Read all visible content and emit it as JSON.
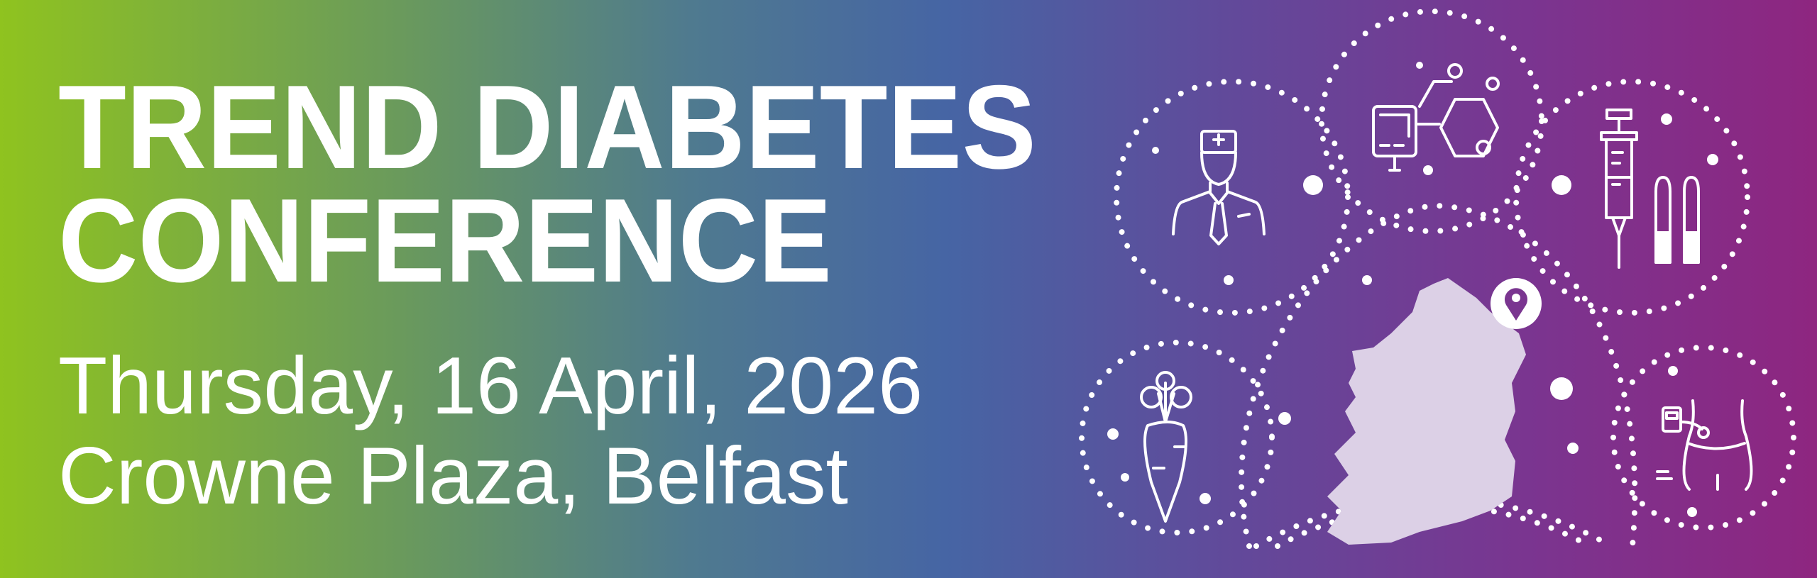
{
  "banner": {
    "title_line1": "TREND DIABETES",
    "title_line2": "CONFERENCE",
    "date": "Thursday, 16 April, 2026",
    "venue": "Crowne Plaza, Belfast"
  },
  "colors": {
    "gradient_left": "#8fc31f",
    "gradient_middle": "#4665a4",
    "gradient_right": "#8e2680",
    "map_fill": "#dcd0e6",
    "text": "#ffffff"
  },
  "illustration": {
    "icons": [
      "doctor-icon",
      "molecule-glucose-meter-icon",
      "syringe-vials-icon",
      "carrot-icon",
      "insulin-pump-icon",
      "ireland-map",
      "location-pin-icon"
    ]
  }
}
